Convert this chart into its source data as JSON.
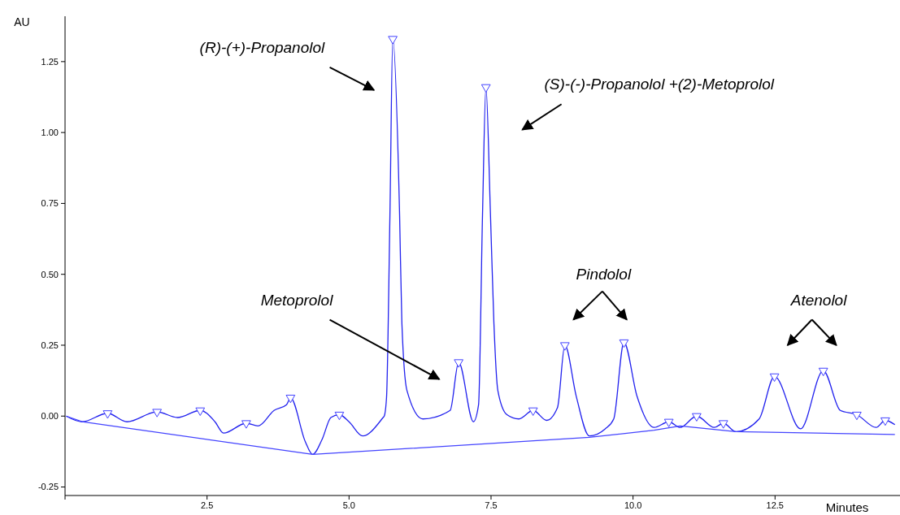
{
  "chart_data": {
    "type": "line",
    "xlabel": "Minutes",
    "ylabel": "AU",
    "xlim": [
      0,
      14.7
    ],
    "ylim": [
      -0.28,
      1.41
    ],
    "xticks": [
      {
        "value": 0,
        "label": null
      },
      2.5,
      {
        "value": 5,
        "label": "5.0"
      },
      7.5,
      {
        "value": 10,
        "label": "10.0"
      },
      12.5
    ],
    "yticks": [
      -0.25,
      {
        "value": 0,
        "label": "0.00"
      },
      0.25,
      {
        "value": 0.5,
        "label": "0.50"
      },
      0.75,
      {
        "value": 1,
        "label": "1.00"
      },
      1.25
    ],
    "grid": false,
    "line_style": "solid",
    "annotations": [
      "(R)-(+)-Propanolol",
      "(S)-(-)-Propanolol +(2)-Metoprolol",
      "Metoprolol",
      "Pindolol",
      "Atenolol"
    ],
    "series": [
      {
        "color": "#2222ee",
        "x": [
          0.02,
          0.3,
          0.75,
          1.09,
          1.62,
          1.98,
          2.38,
          2.64,
          2.79,
          3.19,
          3.4,
          3.68,
          3.9,
          3.97,
          4.23,
          4.36,
          4.53,
          4.68,
          4.83,
          5.0,
          5.24,
          5.6,
          5.62,
          5.66,
          5.72,
          5.77,
          5.89,
          5.93,
          6.02,
          6.3,
          6.78,
          6.93,
          7.19,
          7.28,
          7.35,
          7.41,
          7.49,
          7.55,
          7.62,
          7.78,
          7.99,
          8.24,
          8.48,
          8.67,
          8.8,
          9.0,
          9.23,
          9.51,
          9.66,
          9.84,
          10.07,
          10.37,
          10.63,
          10.83,
          11.12,
          11.43,
          11.59,
          11.81,
          12.22,
          12.49,
          12.95,
          13.35,
          13.65,
          13.94,
          14.28,
          14.44,
          14.61
        ],
        "values": [
          0.0,
          -0.02,
          0.01,
          -0.02,
          0.015,
          -0.005,
          0.02,
          -0.02,
          -0.06,
          -0.025,
          -0.035,
          0.02,
          0.04,
          0.065,
          -0.09,
          -0.135,
          -0.08,
          -0.005,
          0.005,
          -0.02,
          -0.07,
          -0.005,
          0.0,
          0.065,
          0.71,
          1.33,
          0.71,
          0.33,
          0.09,
          -0.01,
          0.02,
          0.19,
          -0.02,
          0.04,
          0.71,
          1.16,
          0.71,
          0.33,
          0.09,
          0.005,
          -0.01,
          0.02,
          -0.015,
          0.03,
          0.25,
          0.07,
          -0.07,
          -0.045,
          -0.01,
          0.26,
          0.07,
          -0.04,
          -0.02,
          -0.04,
          0.0,
          -0.04,
          -0.025,
          -0.055,
          -0.01,
          0.14,
          -0.045,
          0.16,
          0.02,
          0.005,
          -0.04,
          -0.015,
          -0.03
        ]
      },
      {
        "color": "#4444ff",
        "x": [
          0.02,
          0.3,
          4.36,
          9.23,
          10.37,
          10.83,
          11.81,
          14.61
        ],
        "values": [
          0.0,
          -0.02,
          -0.135,
          -0.075,
          -0.05,
          -0.035,
          -0.055,
          -0.065
        ]
      },
      {
        "type": "scatter",
        "color": "#4444ff",
        "marker": "triangle",
        "x": [
          0.75,
          1.62,
          2.38,
          3.19,
          3.97,
          4.83,
          5.77,
          6.93,
          7.41,
          8.24,
          8.8,
          9.84,
          10.63,
          11.12,
          11.59,
          12.49,
          13.35,
          13.94,
          14.44
        ],
        "values": [
          0.01,
          0.015,
          0.02,
          -0.025,
          0.065,
          0.005,
          1.33,
          0.19,
          1.16,
          0.02,
          0.25,
          0.26,
          -0.02,
          0.0,
          -0.025,
          0.14,
          0.16,
          0.005,
          -0.015
        ]
      }
    ]
  }
}
